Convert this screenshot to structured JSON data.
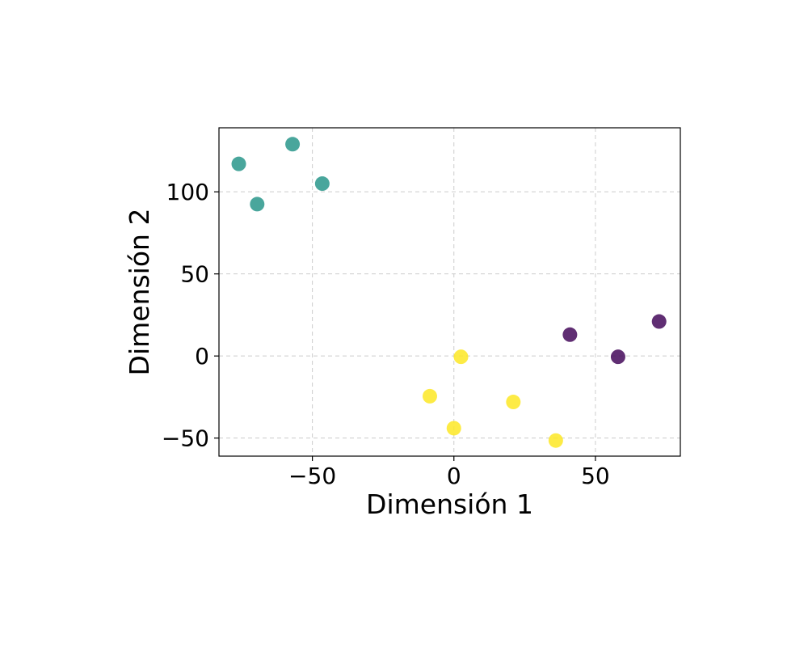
{
  "chart_data": {
    "type": "scatter",
    "title": "",
    "xlabel": "Dimensión 1",
    "ylabel": "Dimensión 2",
    "xlim": [
      -83,
      80
    ],
    "ylim": [
      -61,
      139
    ],
    "xticks": [
      -50,
      0,
      50
    ],
    "yticks": [
      -50,
      0,
      50,
      100
    ],
    "xtick_labels": [
      "−50",
      "0",
      "50"
    ],
    "ytick_labels": [
      "−50",
      "0",
      "50",
      "100"
    ],
    "grid": true,
    "legend": "none",
    "series": [
      {
        "color": "#29968b",
        "points": [
          {
            "x": -76,
            "y": 117
          },
          {
            "x": -69.5,
            "y": 92.5
          },
          {
            "x": -57,
            "y": 129
          },
          {
            "x": -46.5,
            "y": 105
          }
        ]
      },
      {
        "color": "#fde725",
        "points": [
          {
            "x": 2.5,
            "y": -0.5
          },
          {
            "x": -8.5,
            "y": -24.5
          },
          {
            "x": 21,
            "y": -28
          },
          {
            "x": 0,
            "y": -44
          },
          {
            "x": 36,
            "y": -51.5
          }
        ]
      },
      {
        "color": "#44095a",
        "points": [
          {
            "x": 41,
            "y": 13
          },
          {
            "x": 58,
            "y": -0.5
          },
          {
            "x": 72.5,
            "y": 21
          }
        ]
      }
    ]
  }
}
